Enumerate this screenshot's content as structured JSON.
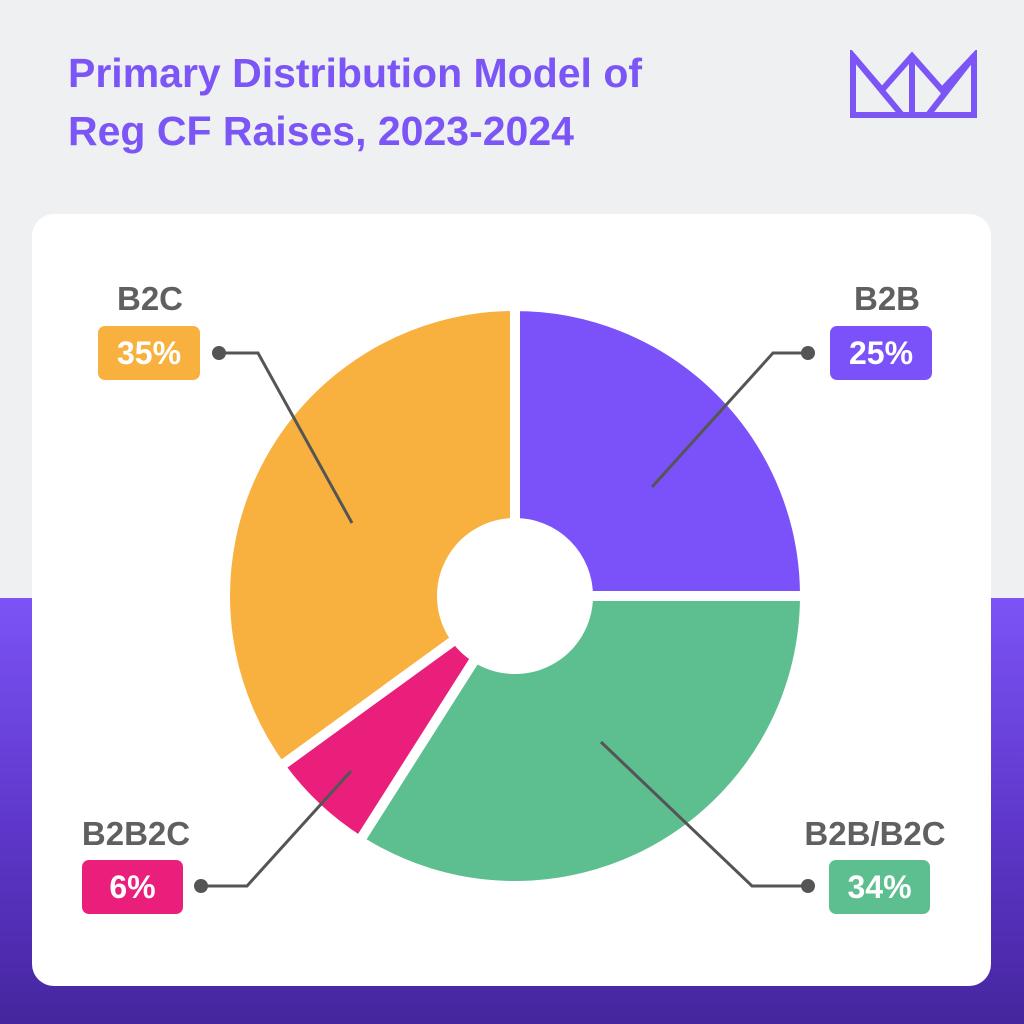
{
  "title": {
    "line1": "Primary Distribution Model of",
    "line2": "Reg CF Raises, 2023-2024"
  },
  "logo_icon": "crown-logo-icon",
  "colors": {
    "background": "#eff0f2",
    "band": "#6a42e0",
    "title": "#7b55f5",
    "label": "#606060",
    "leader": "#555555"
  },
  "chart_data": {
    "type": "pie",
    "title": "Primary Distribution Model of Reg CF Raises, 2023-2024",
    "donut": true,
    "slices": [
      {
        "label": "B2B",
        "value": 25,
        "display": "25%",
        "color": "#7b52f9"
      },
      {
        "label": "B2B/B2C",
        "value": 34,
        "display": "34%",
        "color": "#5dbf90"
      },
      {
        "label": "B2B2C",
        "value": 6,
        "display": "6%",
        "color": "#e91f7b"
      },
      {
        "label": "B2C",
        "value": 35,
        "display": "35%",
        "color": "#f8b13f"
      }
    ]
  }
}
